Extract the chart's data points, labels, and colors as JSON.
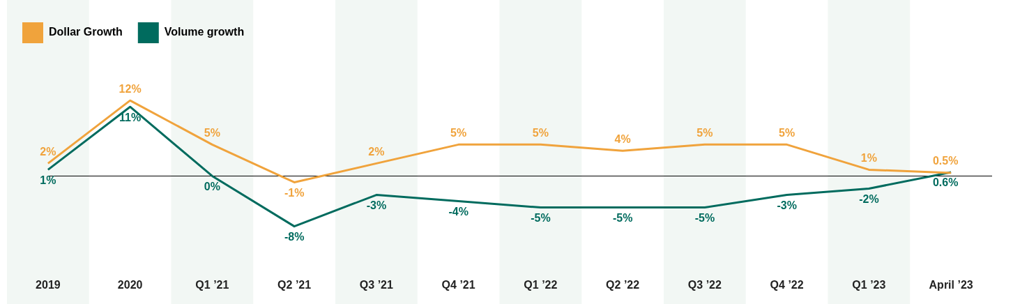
{
  "chart_data": {
    "type": "line",
    "categories": [
      "2019",
      "2020",
      "Q1 ’21",
      "Q2 ’21",
      "Q3 ’21",
      "Q4 ’21",
      "Q1 ’22",
      "Q2 ’22",
      "Q3 ’22",
      "Q4 ’22",
      "Q1 ’23",
      "April ’23"
    ],
    "series": [
      {
        "name": "Dollar Growth",
        "color": "#f0a33c",
        "values": [
          2,
          12,
          5,
          -1,
          2,
          5,
          5,
          4,
          5,
          5,
          1,
          0.5
        ],
        "value_labels": [
          "2%",
          "12%",
          "5%",
          "-1%",
          "2%",
          "5%",
          "5%",
          "4%",
          "5%",
          "5%",
          "1%",
          "0.5%"
        ]
      },
      {
        "name": "Volume growth",
        "color": "#006b5e",
        "values": [
          1,
          11,
          0,
          -8,
          -3,
          -4,
          -5,
          -5,
          -5,
          -3,
          -2,
          0.6
        ],
        "value_labels": [
          "1%",
          "11%",
          "0%",
          "-8%",
          "-3%",
          "-4%",
          "-5%",
          "-5%",
          "-5%",
          "-3%",
          "-2%",
          "0.6%"
        ]
      }
    ],
    "legend": "top left",
    "grid": false,
    "marker": "none",
    "ref_lines": [
      {
        "axis": "y",
        "value": 0,
        "color": "#000000"
      }
    ],
    "bands": [
      {
        "axis": "x",
        "from": "2019",
        "to": "2019",
        "color": "#f2f7f4"
      },
      {
        "axis": "x",
        "from": "Q1 ’21",
        "to": "Q1 ’21",
        "color": "#f2f7f4"
      },
      {
        "axis": "x",
        "from": "Q3 ’21",
        "to": "Q3 ’21",
        "color": "#f2f7f4"
      },
      {
        "axis": "x",
        "from": "Q1 ’22",
        "to": "Q1 ’22",
        "color": "#f2f7f4"
      },
      {
        "axis": "x",
        "from": "Q3 ’22",
        "to": "Q3 ’22",
        "color": "#f2f7f4"
      },
      {
        "axis": "x",
        "from": "Q1 ’23",
        "to": "Q1 ’23",
        "color": "#f2f7f4"
      }
    ]
  }
}
